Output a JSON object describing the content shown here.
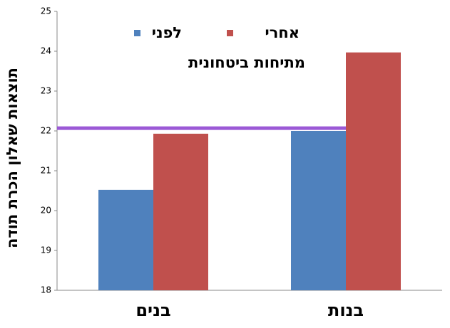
{
  "chart_data": {
    "type": "bar",
    "y_label": "תוצאות שאלון הכרת תודה",
    "categories": [
      "בנים",
      "בנות"
    ],
    "series": [
      {
        "name": "לפני",
        "color": "#4f81bd",
        "values": [
          20.52,
          22.0
        ]
      },
      {
        "name": "אחרי",
        "color": "#c0504d",
        "values": [
          21.93,
          23.97
        ]
      }
    ],
    "legend_title": "מתיחות ביטחונית",
    "reference_line": {
      "value": 22.07,
      "color": "#9b59d6"
    },
    "ylim": [
      18,
      25
    ],
    "yticks": [
      18,
      19,
      20,
      21,
      22,
      23,
      24,
      25
    ],
    "grid": false
  }
}
